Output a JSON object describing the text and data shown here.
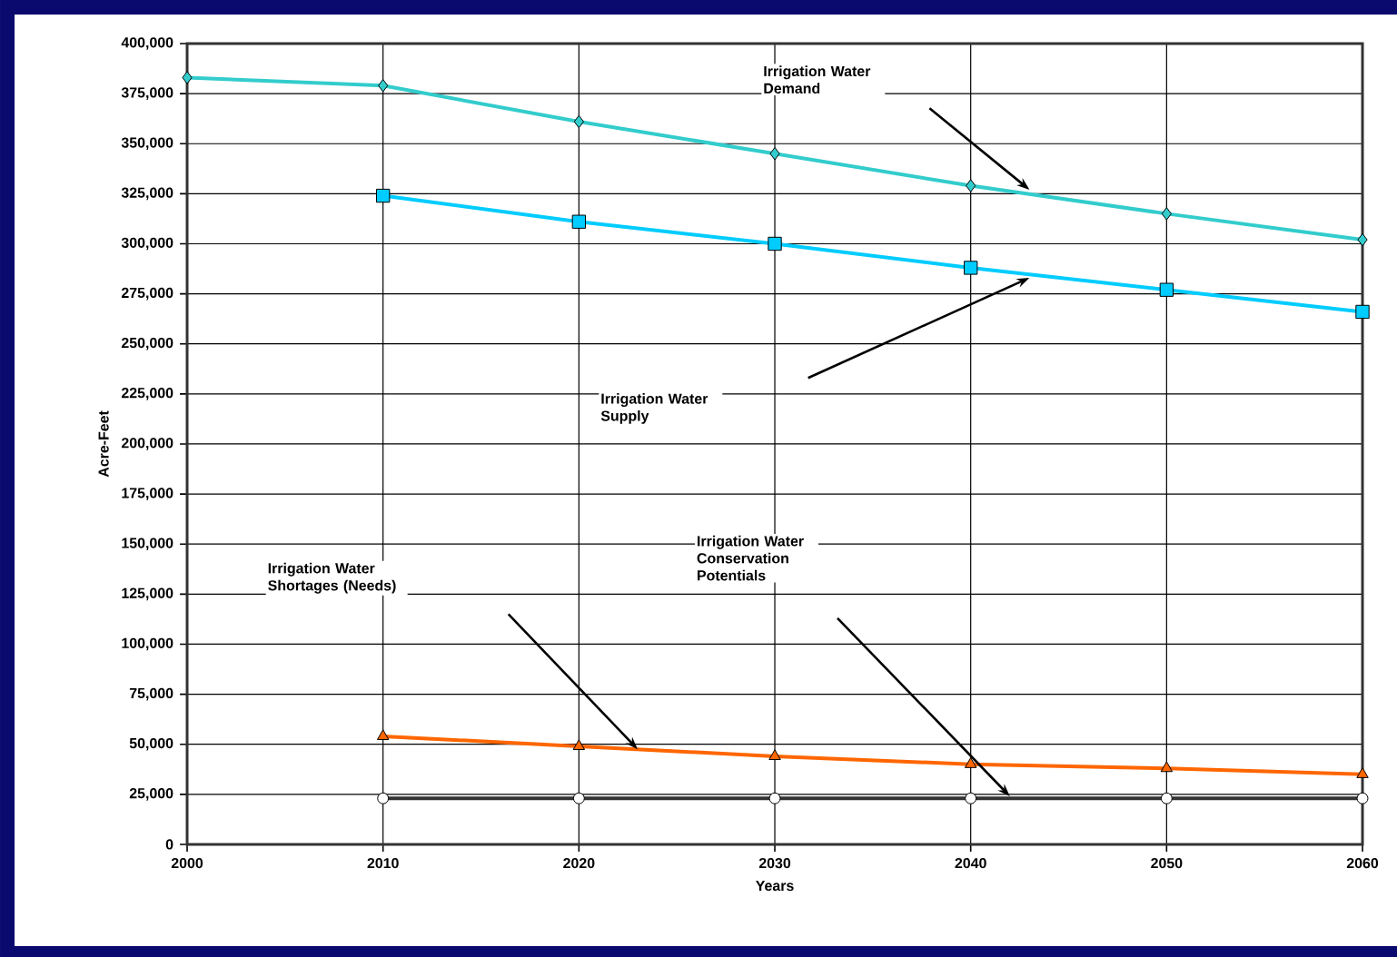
{
  "chart_data": {
    "type": "line",
    "xlabel": "Years",
    "ylabel": "Acre-Feet",
    "xlim": [
      2000,
      2060
    ],
    "xticks": [
      2000,
      2010,
      2020,
      2030,
      2040,
      2050,
      2060
    ],
    "ylim": [
      0,
      400000
    ],
    "yticks": [
      {
        "value": 0,
        "label": "0"
      },
      {
        "value": 25000,
        "label": "25,000"
      },
      {
        "value": 50000,
        "label": "50,000"
      },
      {
        "value": 75000,
        "label": "75,000"
      },
      {
        "value": 100000,
        "label": "100,000"
      },
      {
        "value": 125000,
        "label": "125,000"
      },
      {
        "value": 150000,
        "label": "150,000"
      },
      {
        "value": 175000,
        "label": "175,000"
      },
      {
        "value": 200000,
        "label": "200,000"
      },
      {
        "value": 225000,
        "label": "225,000"
      },
      {
        "value": 250000,
        "label": "250,000"
      },
      {
        "value": 275000,
        "label": "275,000"
      },
      {
        "value": 300000,
        "label": "300,000"
      },
      {
        "value": 325000,
        "label": "325,000"
      },
      {
        "value": 350000,
        "label": "350,000"
      },
      {
        "value": 375000,
        "label": "375,000"
      },
      {
        "value": 400000,
        "label": "400,000"
      }
    ],
    "grid": true,
    "series": [
      {
        "color": "#33cccc",
        "marker": "diamond",
        "x": [
          2000,
          2010,
          2020,
          2030,
          2040,
          2050,
          2060
        ],
        "values": [
          383000,
          379000,
          361000,
          345000,
          329000,
          315000,
          302000
        ]
      },
      {
        "color": "#00ccff",
        "marker": "square",
        "x": [
          2010,
          2020,
          2030,
          2040,
          2050,
          2060
        ],
        "values": [
          324000,
          311000,
          300000,
          288000,
          277000,
          266000
        ]
      },
      {
        "color": "#ff6600",
        "marker": "triangle",
        "x": [
          2010,
          2020,
          2030,
          2040,
          2050,
          2060
        ],
        "values": [
          54000,
          49000,
          44000,
          40000,
          38000,
          35000
        ]
      },
      {
        "color": "#333333",
        "marker": "circle",
        "x": [
          2010,
          2020,
          2030,
          2040,
          2050,
          2060
        ],
        "values": [
          23000,
          23000,
          23000,
          23000,
          23000,
          23000
        ]
      }
    ],
    "annotations": [
      "Irrigation Water Demand",
      "Irrigation Water Supply",
      "Irrigation Water Shortages (Needs)",
      "Irrigation Water Conservation Potentials"
    ]
  }
}
